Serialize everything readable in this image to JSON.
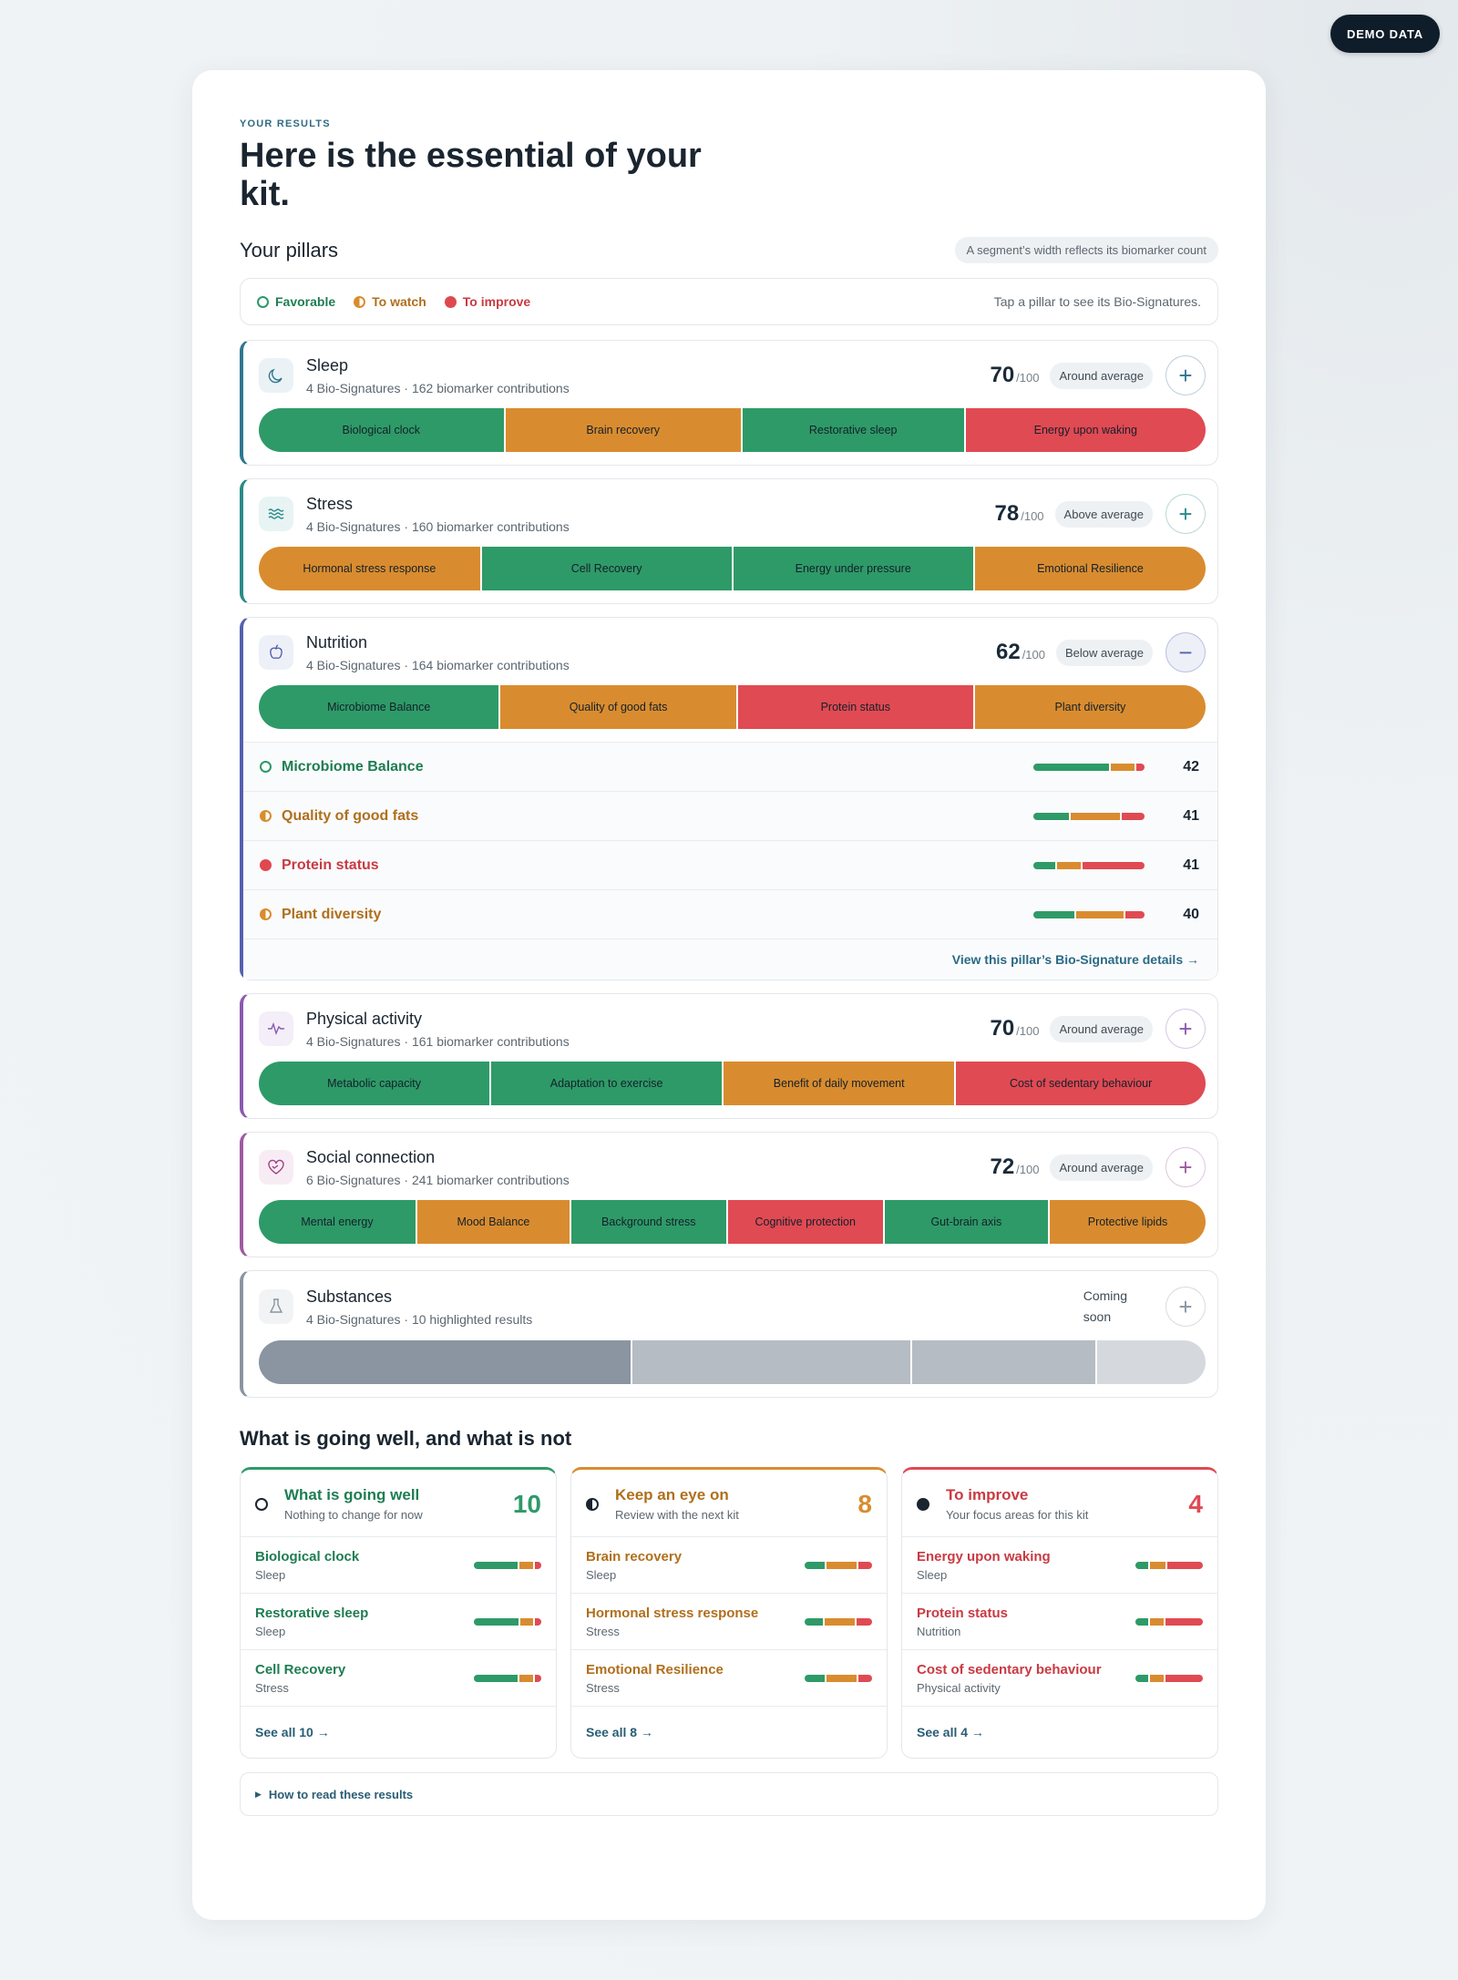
{
  "badge": "DEMO DATA",
  "header": {
    "eyebrow": "YOUR RESULTS",
    "title": "Here is the essential of your kit."
  },
  "pillars_section": {
    "title": "Your pillars",
    "hint": "A segment’s width reflects its biomarker count"
  },
  "legend": {
    "favorable": "Favorable",
    "watch": "To watch",
    "improve": "To improve",
    "hint": "Tap a pillar to see its Bio-Signatures."
  },
  "colors": {
    "favorable": "#2e9a68",
    "watch": "#d98c2f",
    "improve": "#e04a53"
  },
  "pillars": [
    {
      "name": "Sleep",
      "sub": "4 Bio-Signatures · 162 biomarker contributions",
      "score": "70",
      "max": "/100",
      "rank": "Around average",
      "toggle": "+",
      "icon": "moon-icon",
      "accent": "#2f7690",
      "segments": [
        {
          "label": "Biological clock",
          "status": "fav",
          "weight": 26
        },
        {
          "label": "Brain recovery",
          "status": "watch",
          "weight": 25
        },
        {
          "label": "Restorative sleep",
          "status": "fav",
          "weight": 23.5
        },
        {
          "label": "Energy upon waking",
          "status": "imp",
          "weight": 25.5
        }
      ]
    },
    {
      "name": "Stress",
      "sub": "4 Bio-Signatures · 160 biomarker contributions",
      "score": "78",
      "max": "/100",
      "rank": "Above average",
      "toggle": "+",
      "icon": "waves-icon",
      "accent": "#2a8a8a",
      "segments": [
        {
          "label": "Hormonal stress response",
          "status": "watch",
          "weight": 23.5
        },
        {
          "label": "Cell Recovery",
          "status": "fav",
          "weight": 26.5
        },
        {
          "label": "Energy under pressure",
          "status": "fav",
          "weight": 25.5
        },
        {
          "label": "Emotional Resilience",
          "status": "watch",
          "weight": 24.5
        }
      ]
    },
    {
      "name": "Nutrition",
      "sub": "4 Bio-Signatures · 164 biomarker contributions",
      "score": "62",
      "max": "/100",
      "rank": "Below average",
      "toggle": "−",
      "icon": "apple-icon",
      "accent": "#5560b0",
      "segments": [
        {
          "label": "Microbiome Balance",
          "status": "fav",
          "weight": 25.5
        },
        {
          "label": "Quality of good fats",
          "status": "watch",
          "weight": 25
        },
        {
          "label": "Protein status",
          "status": "imp",
          "weight": 25
        },
        {
          "label": "Plant diversity",
          "status": "watch",
          "weight": 24.5
        }
      ],
      "details": [
        {
          "name": "Microbiome Balance",
          "status": "fav",
          "value": "42",
          "mix": [
            70,
            22,
            8
          ]
        },
        {
          "name": "Quality of good fats",
          "status": "watch",
          "value": "41",
          "mix": [
            33,
            46,
            21
          ]
        },
        {
          "name": "Protein status",
          "status": "imp",
          "value": "41",
          "mix": [
            20,
            22,
            58
          ]
        },
        {
          "name": "Plant diversity",
          "status": "watch",
          "value": "40",
          "mix": [
            38,
            44,
            18
          ]
        }
      ],
      "detail_link": "View this pillar’s Bio-Signature details →"
    },
    {
      "name": "Physical activity",
      "sub": "4 Bio-Signatures · 161 biomarker contributions",
      "score": "70",
      "max": "/100",
      "rank": "Around average",
      "toggle": "+",
      "icon": "pulse-icon",
      "accent": "#8a5ab0",
      "segments": [
        {
          "label": "Metabolic capacity",
          "status": "fav",
          "weight": 24.5
        },
        {
          "label": "Adaptation to exercise",
          "status": "fav",
          "weight": 24.5
        },
        {
          "label": "Benefit of daily movement",
          "status": "watch",
          "weight": 24.5
        },
        {
          "label": "Cost of sedentary behaviour",
          "status": "imp",
          "weight": 26.5
        }
      ]
    },
    {
      "name": "Social connection",
      "sub": "6 Bio-Signatures · 241 biomarker contributions",
      "score": "72",
      "max": "/100",
      "rank": "Around average",
      "toggle": "+",
      "icon": "heart-icon",
      "accent": "#a05aa0",
      "segments": [
        {
          "label": "Mental energy",
          "status": "fav",
          "weight": 16.5
        },
        {
          "label": "Mood Balance",
          "status": "watch",
          "weight": 16
        },
        {
          "label": "Background stress",
          "status": "fav",
          "weight": 16.3
        },
        {
          "label": "Cognitive protection",
          "status": "imp",
          "weight": 16.3
        },
        {
          "label": "Gut-brain axis",
          "status": "fav",
          "weight": 17.2
        },
        {
          "label": "Protective lipids",
          "status": "watch",
          "weight": 16.4
        }
      ]
    },
    {
      "name": "Substances",
      "sub": "4 Bio-Signatures · 10 highlighted results",
      "score": "",
      "max": "",
      "rank": "",
      "coming_l1": "Coming",
      "coming_l2": "soon",
      "toggle": "+",
      "icon": "flask-icon",
      "accent": "#8a95a1",
      "segments": [
        {
          "label": "",
          "status": "grey1",
          "weight": 39.5
        },
        {
          "label": "",
          "status": "grey2",
          "weight": 29.5
        },
        {
          "label": "",
          "status": "grey2",
          "weight": 19.5
        },
        {
          "label": "",
          "status": "grey3",
          "weight": 11.5
        }
      ]
    }
  ],
  "summary": {
    "title": "What is going well, and what is not",
    "columns": [
      {
        "kind": "fav",
        "title": "What is going well",
        "sub": "Nothing to change for now",
        "count": "10",
        "items": [
          {
            "name": "Biological clock",
            "cat": "Sleep",
            "mix": [
              68,
              22,
              10
            ]
          },
          {
            "name": "Restorative sleep",
            "cat": "Sleep",
            "mix": [
              70,
              20,
              10
            ]
          },
          {
            "name": "Cell Recovery",
            "cat": "Stress",
            "mix": [
              68,
              22,
              10
            ]
          }
        ],
        "see_all": "See all 10 →"
      },
      {
        "kind": "watch",
        "title": "Keep an eye on",
        "sub": "Review with the next kit",
        "count": "8",
        "items": [
          {
            "name": "Brain recovery",
            "cat": "Sleep",
            "mix": [
              32,
              46,
              22
            ]
          },
          {
            "name": "Hormonal stress response",
            "cat": "Stress",
            "mix": [
              28,
              48,
              24
            ]
          },
          {
            "name": "Emotional Resilience",
            "cat": "Stress",
            "mix": [
              32,
              46,
              22
            ]
          }
        ],
        "see_all": "See all 8 →"
      },
      {
        "kind": "imp",
        "title": "To improve",
        "sub": "Your focus areas for this kit",
        "count": "4",
        "items": [
          {
            "name": "Energy upon waking",
            "cat": "Sleep",
            "mix": [
              20,
              24,
              56
            ]
          },
          {
            "name": "Protein status",
            "cat": "Nutrition",
            "mix": [
              20,
              22,
              58
            ]
          },
          {
            "name": "Cost of sedentary behaviour",
            "cat": "Physical activity",
            "mix": [
              20,
              22,
              58
            ]
          }
        ],
        "see_all": "See all 4 →"
      }
    ]
  },
  "howto": "How to read these results"
}
